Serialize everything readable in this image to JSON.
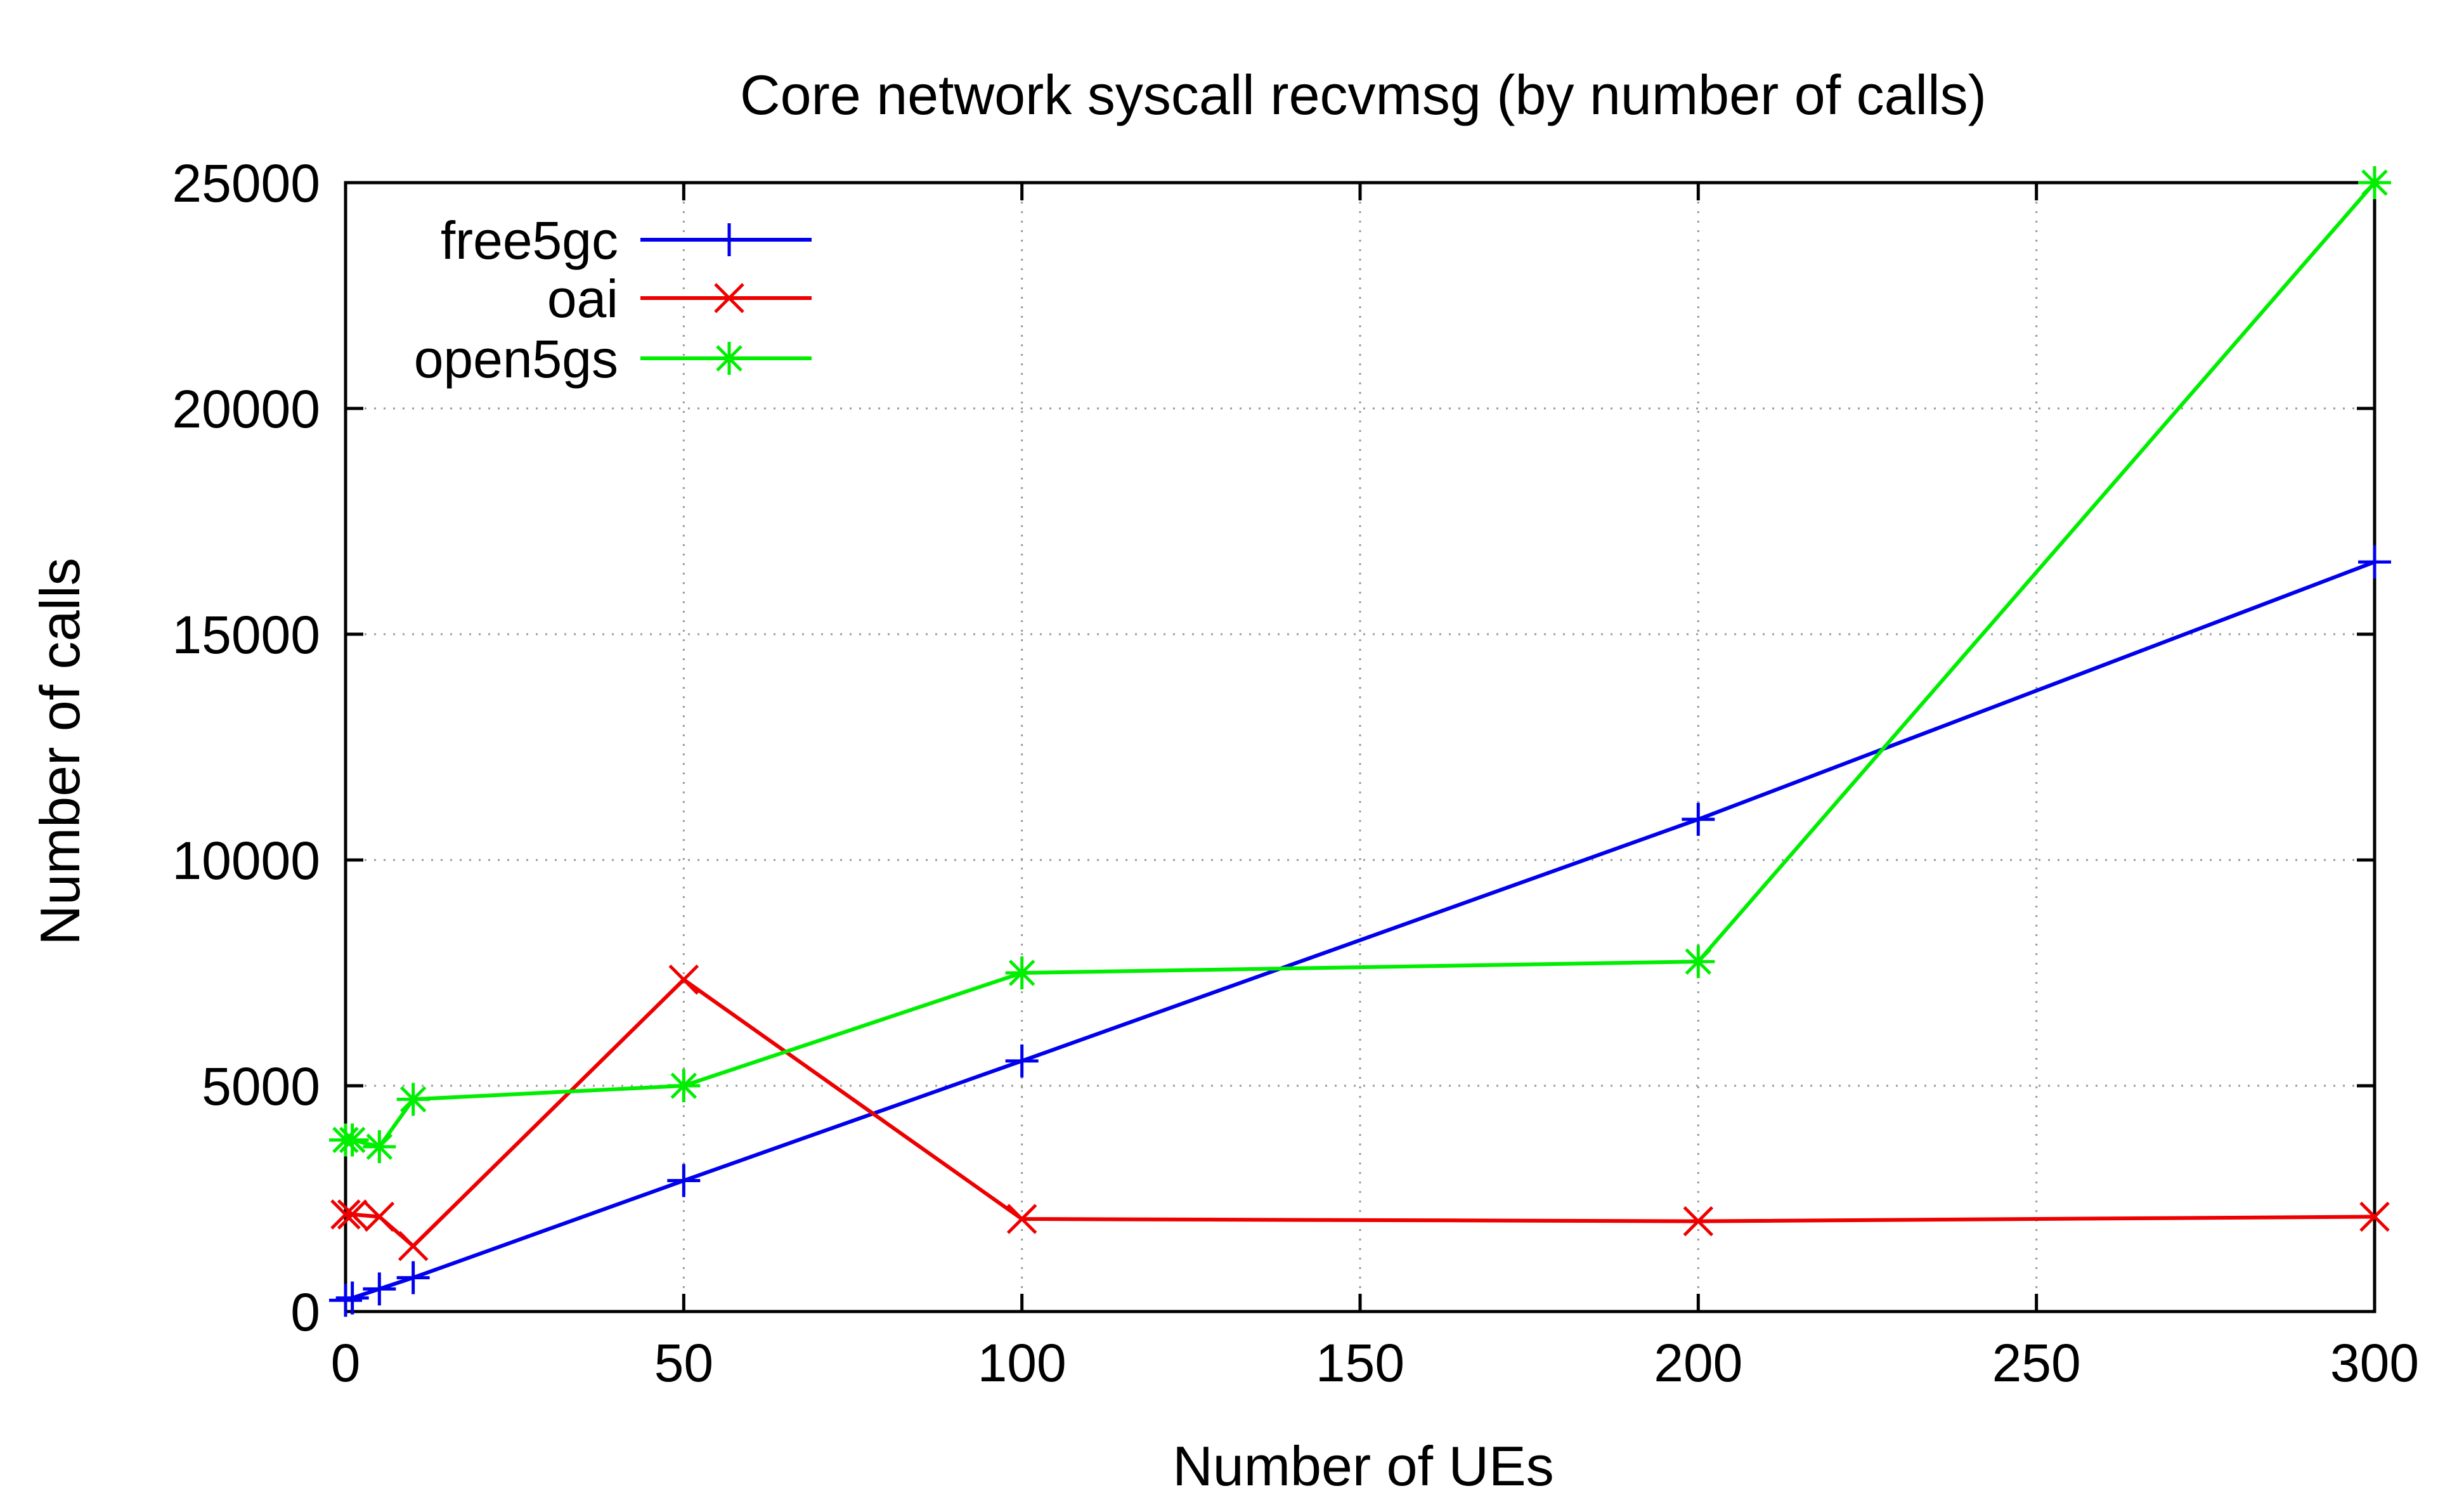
{
  "chart_data": {
    "type": "line",
    "title": "Core network syscall recvmsg (by number of calls)",
    "xlabel": "Number of UEs",
    "ylabel": "Number of calls",
    "xlim": [
      0,
      300
    ],
    "ylim": [
      0,
      25000
    ],
    "xticks": [
      0,
      50,
      100,
      150,
      200,
      250,
      300
    ],
    "yticks": [
      0,
      5000,
      10000,
      15000,
      20000,
      25000
    ],
    "xtick_labels": [
      "0",
      "50",
      "100",
      "150",
      "200",
      "250",
      "300"
    ],
    "ytick_labels": [
      "0",
      "5000",
      "10000",
      "15000",
      "20000",
      "25000"
    ],
    "grid": true,
    "legend_position": "top-left",
    "series": [
      {
        "name": "free5gc",
        "color": "#0000ee",
        "marker": "plus",
        "x": [
          0,
          1,
          5,
          10,
          50,
          100,
          200,
          300
        ],
        "y": [
          250,
          300,
          500,
          750,
          2900,
          5550,
          10900,
          16600
        ]
      },
      {
        "name": "oai",
        "color": "#ee0000",
        "marker": "cross",
        "x": [
          0,
          1,
          5,
          10,
          50,
          100,
          200,
          300
        ],
        "y": [
          2150,
          2150,
          2100,
          1450,
          7350,
          2050,
          2000,
          2100
        ]
      },
      {
        "name": "open5gs",
        "color": "#00ee00",
        "marker": "star",
        "x": [
          0,
          1,
          5,
          10,
          50,
          100,
          200,
          300
        ],
        "y": [
          3800,
          3800,
          3650,
          4700,
          5000,
          7500,
          7750,
          25000
        ]
      }
    ]
  }
}
